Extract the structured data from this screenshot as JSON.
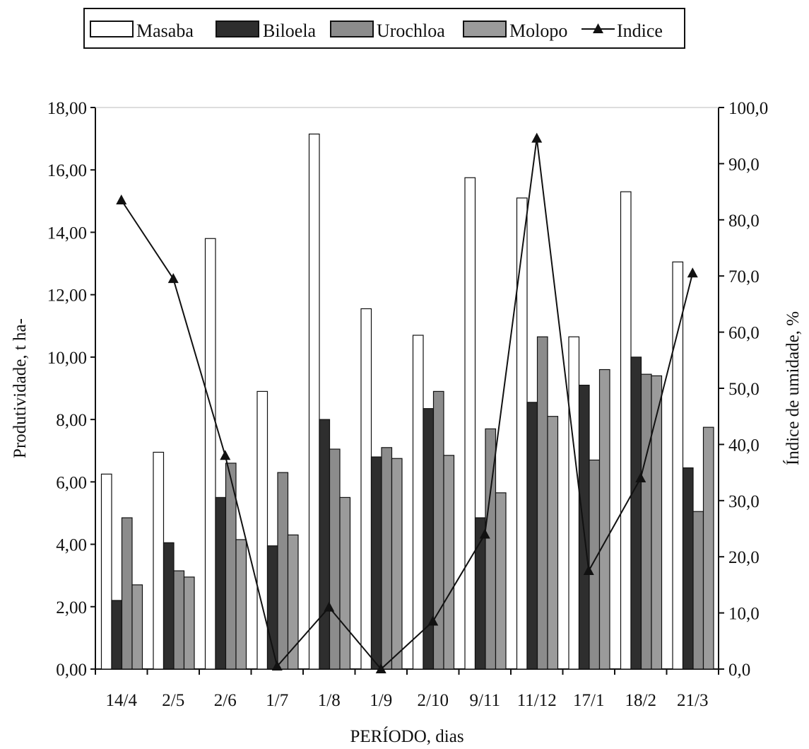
{
  "colors": {
    "masaba": "#ffffff",
    "biloela": "#2e2e2e",
    "urochloa": "#8c8c8c",
    "molopo": "#9b9b9b",
    "indice": "#111111"
  },
  "chart_data": {
    "type": "bar",
    "categories": [
      "14/4",
      "2/5",
      "2/6",
      "1/7",
      "1/8",
      "1/9",
      "2/10",
      "9/11",
      "11/12",
      "17/1",
      "18/2",
      "21/3"
    ],
    "series": [
      {
        "name": "Masaba",
        "values": [
          6.25,
          6.95,
          13.8,
          8.9,
          17.15,
          11.55,
          10.7,
          15.75,
          15.1,
          10.65,
          15.3,
          13.05
        ]
      },
      {
        "name": "Biloela",
        "values": [
          2.2,
          4.05,
          5.5,
          3.95,
          8.0,
          6.8,
          8.35,
          4.85,
          8.55,
          9.1,
          10.0,
          6.45
        ]
      },
      {
        "name": "Urochloa",
        "values": [
          4.85,
          3.15,
          6.6,
          6.3,
          7.05,
          7.1,
          8.9,
          7.7,
          10.65,
          6.7,
          9.45,
          5.05
        ]
      },
      {
        "name": "Molopo",
        "values": [
          2.7,
          2.95,
          4.15,
          4.3,
          5.5,
          6.75,
          6.85,
          5.65,
          8.1,
          9.6,
          9.4,
          7.75
        ]
      }
    ],
    "line_series": {
      "name": "Indice",
      "axis": "right",
      "values": [
        83.5,
        69.5,
        38.0,
        0.5,
        11.0,
        0.0,
        8.5,
        24.0,
        94.5,
        17.5,
        34.0,
        70.5
      ]
    },
    "xlabel": "PERÍODO, dias",
    "ylabel": "Produtividade, t ha-",
    "y2label": "Índice de umidade, %",
    "ylim": [
      0,
      18
    ],
    "y2lim": [
      0,
      100
    ],
    "yticks": [
      "0,00",
      "2,00",
      "4,00",
      "6,00",
      "8,00",
      "10,00",
      "12,00",
      "14,00",
      "16,00",
      "18,00"
    ],
    "y2ticks": [
      "0,0",
      "10,0",
      "20,0",
      "30,0",
      "40,0",
      "50,0",
      "60,0",
      "70,0",
      "80,0",
      "90,0",
      "100,0"
    ],
    "legend_position": "top"
  }
}
